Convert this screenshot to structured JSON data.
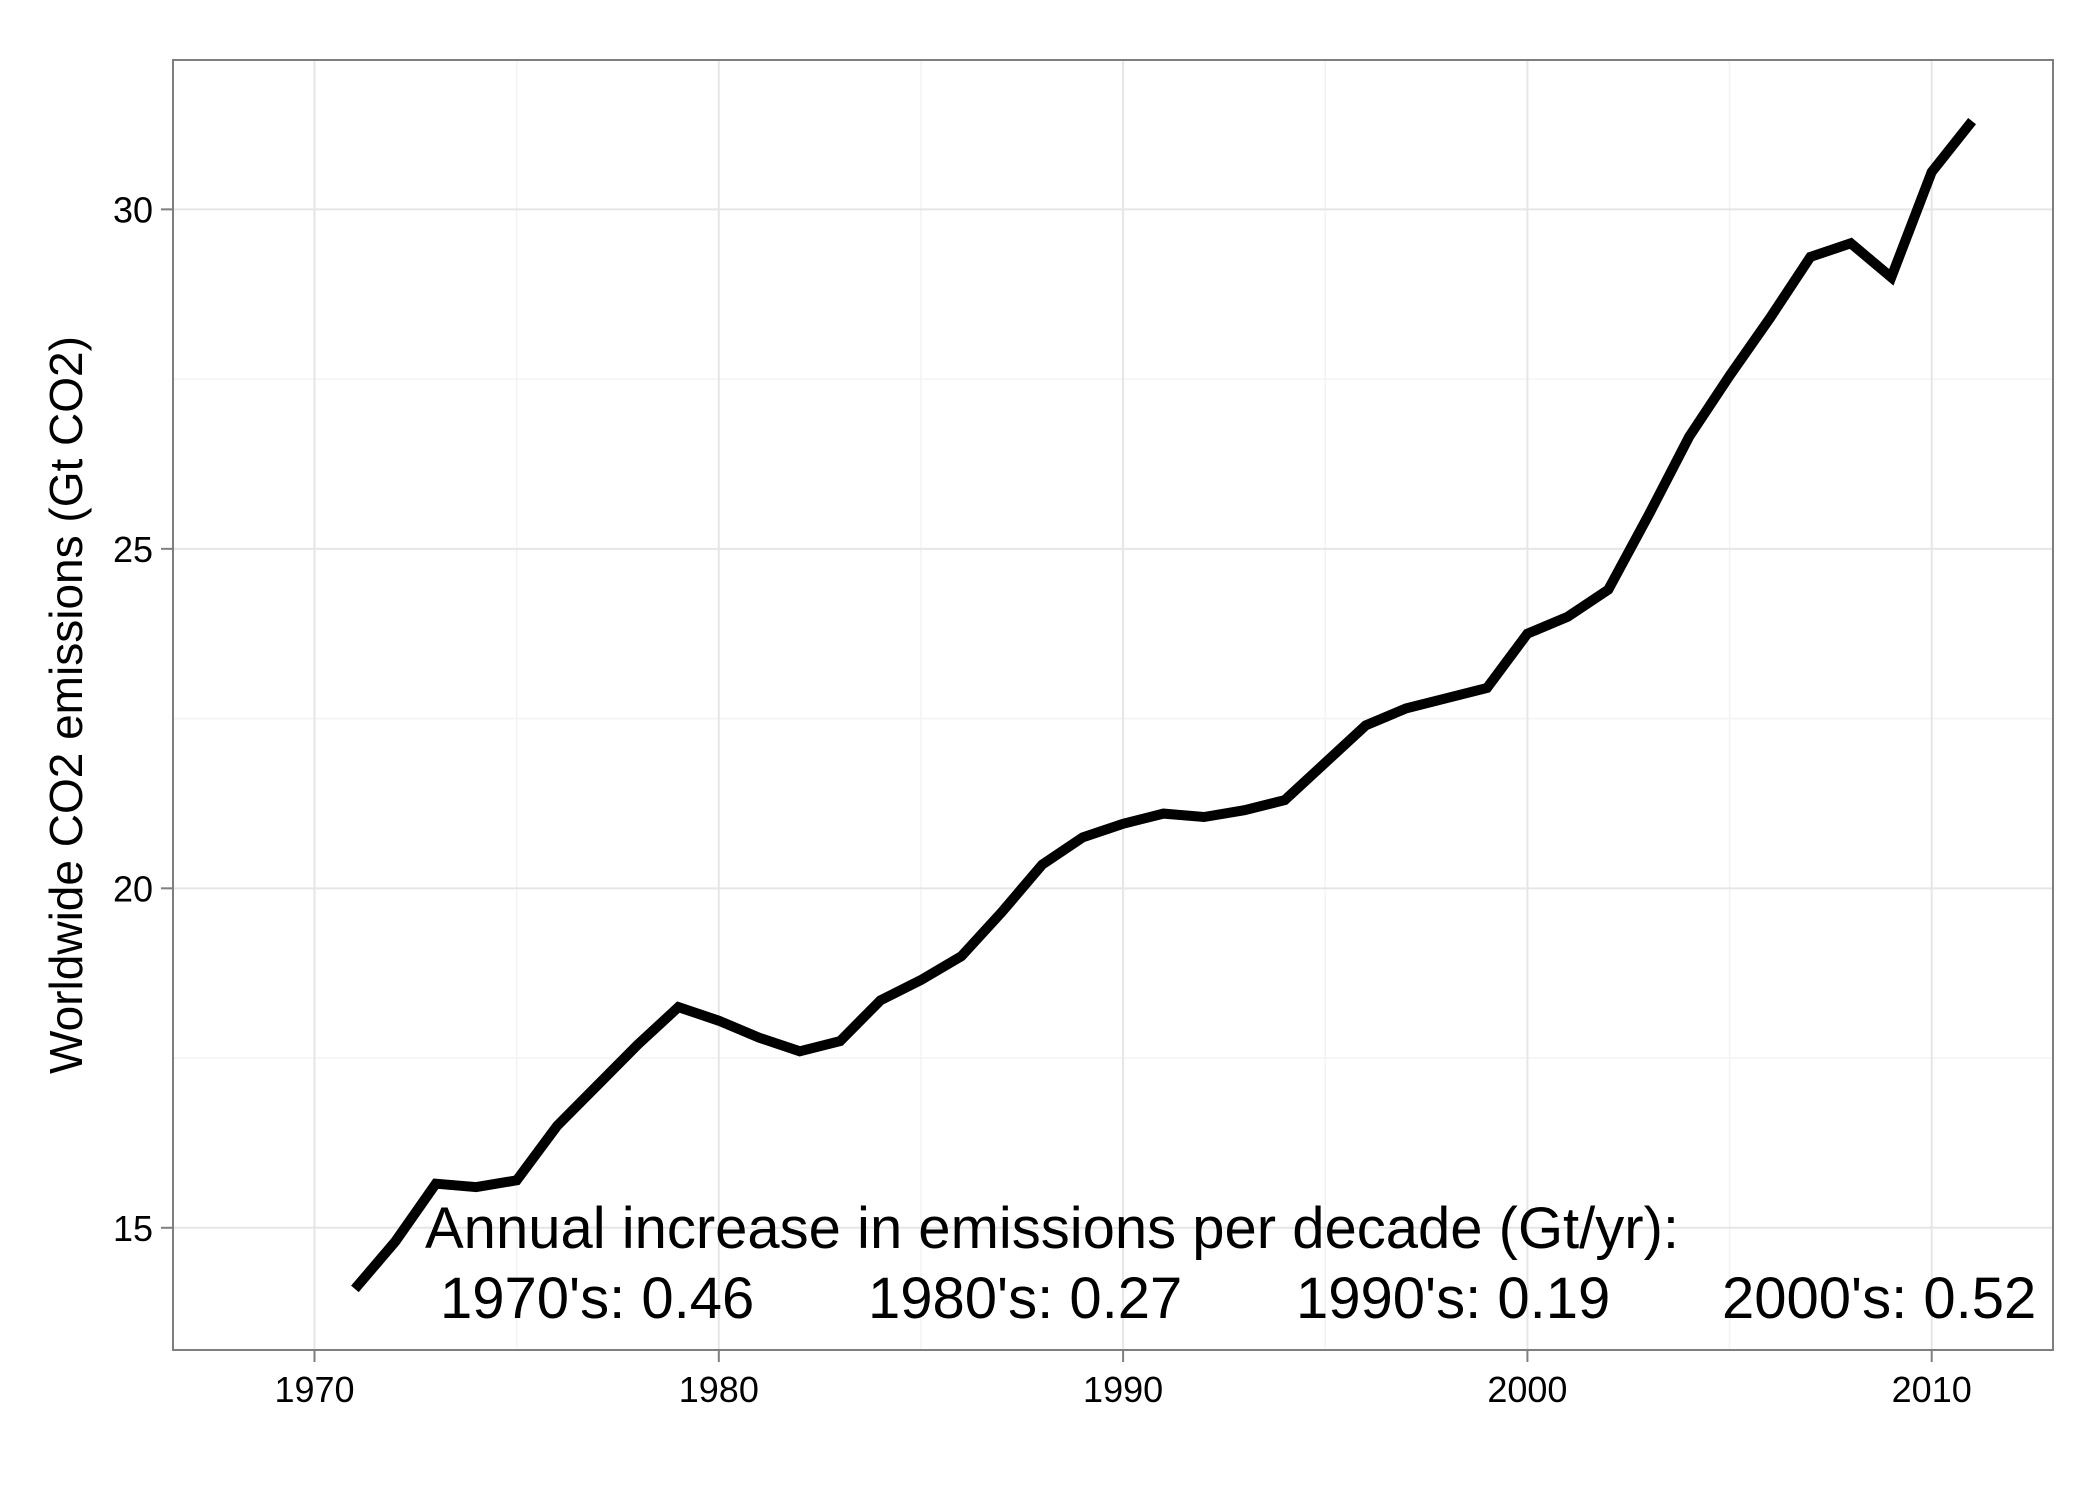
{
  "chart_data": {
    "type": "line",
    "ylabel": "Worldwide CO2 emissions (Gt CO2)",
    "xlabel": "",
    "title": "",
    "xlim": [
      1966.5,
      2013.0
    ],
    "ylim": [
      13.2,
      32.2
    ],
    "x_ticks": [
      1970,
      1980,
      1990,
      2000,
      2010
    ],
    "y_ticks": [
      15,
      20,
      25,
      30
    ],
    "grid": true,
    "legend": "none",
    "series": [
      {
        "color": "#000000",
        "x": [
          1971,
          1972,
          1973,
          1974,
          1975,
          1976,
          1977,
          1978,
          1979,
          1980,
          1981,
          1982,
          1983,
          1984,
          1985,
          1986,
          1987,
          1988,
          1989,
          1990,
          1991,
          1992,
          1993,
          1994,
          1995,
          1996,
          1997,
          1998,
          1999,
          2000,
          2001,
          2002,
          2003,
          2004,
          2005,
          2006,
          2007,
          2008,
          2009,
          2010,
          2011
        ],
        "values": [
          14.1,
          14.8,
          15.65,
          15.6,
          15.7,
          16.5,
          17.1,
          17.7,
          18.25,
          18.05,
          17.8,
          17.6,
          17.75,
          18.35,
          18.65,
          19.0,
          19.65,
          20.35,
          20.75,
          20.95,
          21.1,
          21.05,
          21.15,
          21.3,
          21.85,
          22.4,
          22.65,
          22.8,
          22.95,
          23.75,
          24.0,
          24.4,
          25.5,
          26.65,
          27.55,
          28.4,
          29.3,
          29.5,
          29.0,
          30.55,
          31.3
        ]
      }
    ],
    "annotations": {
      "title_line": "Annual increase in emissions per decade (Gt/yr):",
      "decades": [
        "1970's: 0.46",
        "1980's: 0.27",
        "1990's: 0.19",
        "2000's: 0.52"
      ]
    }
  }
}
